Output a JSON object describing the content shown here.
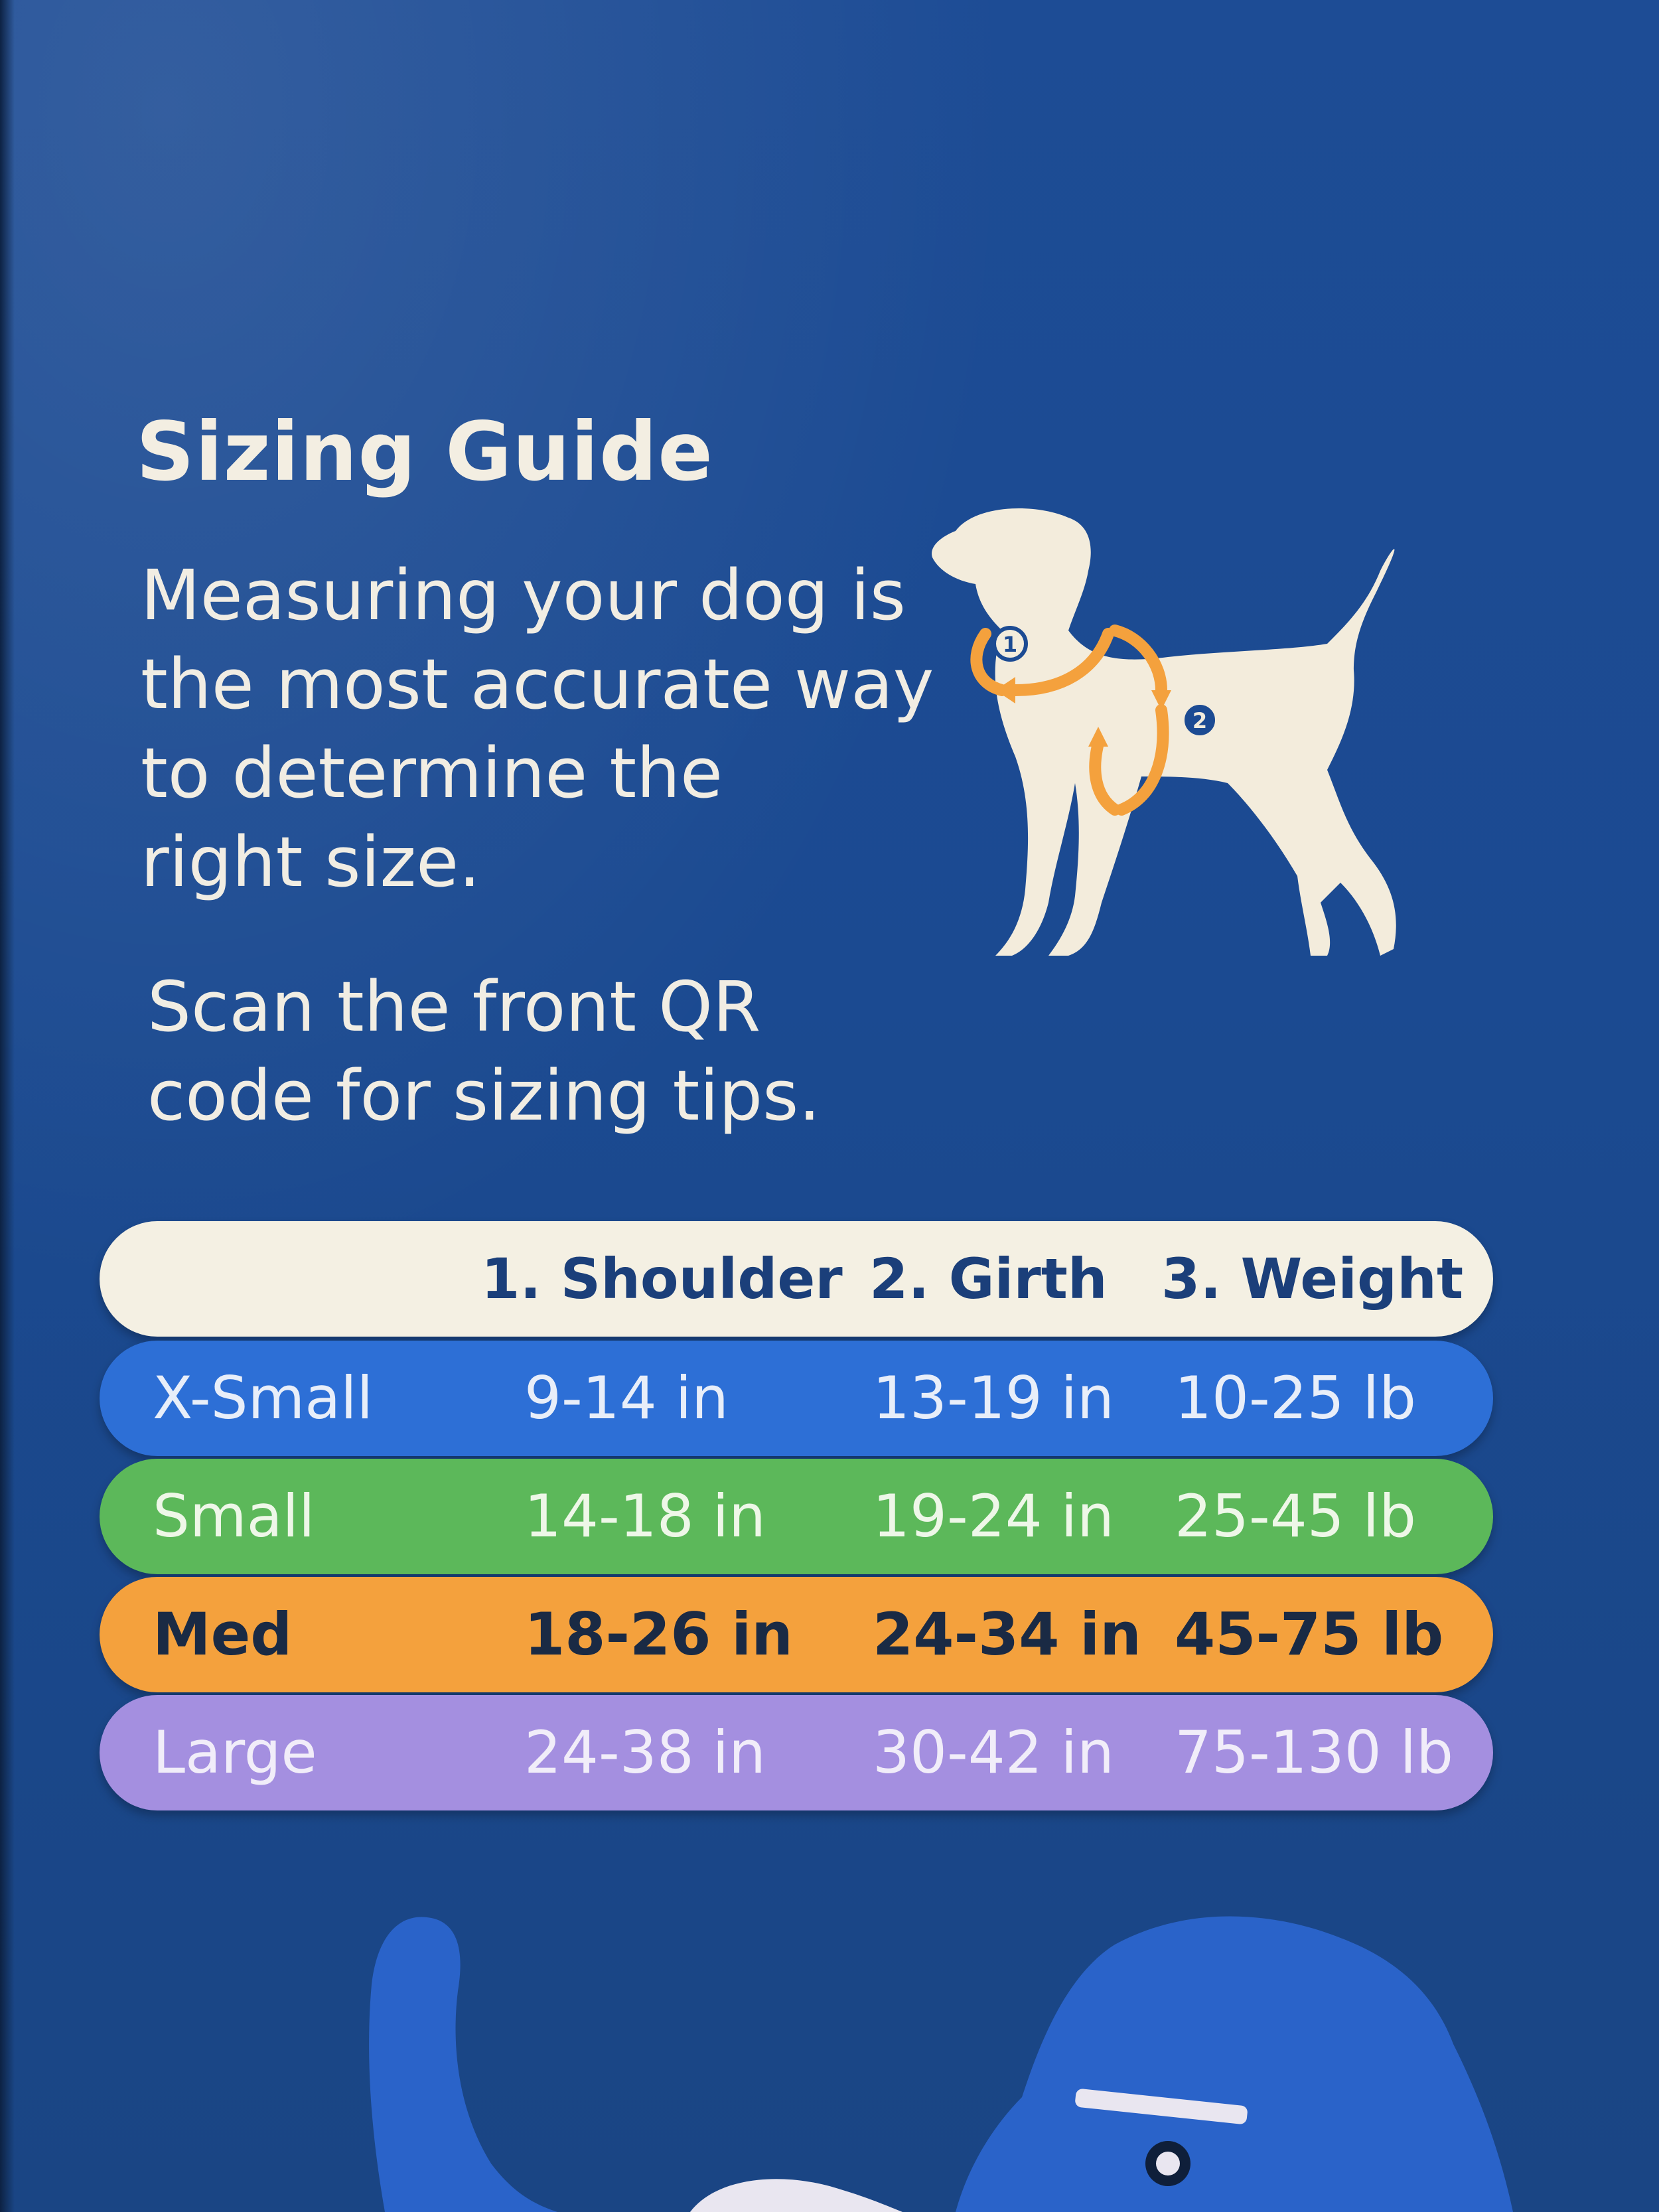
{
  "title": "Sizing Guide",
  "intro_lines": [
    "Measuring your dog is",
    "the most accurate way",
    "to determine the",
    "right size."
  ],
  "tip_lines": [
    "Scan the front QR",
    "code for sizing tips."
  ],
  "diagram": {
    "marker_1": "1",
    "marker_2": "2"
  },
  "table": {
    "headers": [
      "",
      "1. Shoulder",
      "2. Girth",
      "3. Weight"
    ],
    "rows": [
      {
        "size": "X-Small",
        "shoulder": "9-14 in",
        "girth": "13-19 in",
        "weight": "10-25 lb",
        "color": "#2d6fd6"
      },
      {
        "size": "Small",
        "shoulder": "14-18 in",
        "girth": "19-24 in",
        "weight": "25-45 lb",
        "color": "#5cb85a"
      },
      {
        "size": "Med",
        "shoulder": "18-26 in",
        "girth": "24-34 in",
        "weight": "45-75 lb",
        "color": "#f4a13d"
      },
      {
        "size": "Large",
        "shoulder": "24-38 in",
        "girth": "30-42 in",
        "weight": "75-130 lb",
        "color": "#a48fe0"
      }
    ]
  },
  "colors": {
    "background": "#1c4b93",
    "text": "#f1ede3",
    "measure_arrow": "#f4a13d"
  }
}
